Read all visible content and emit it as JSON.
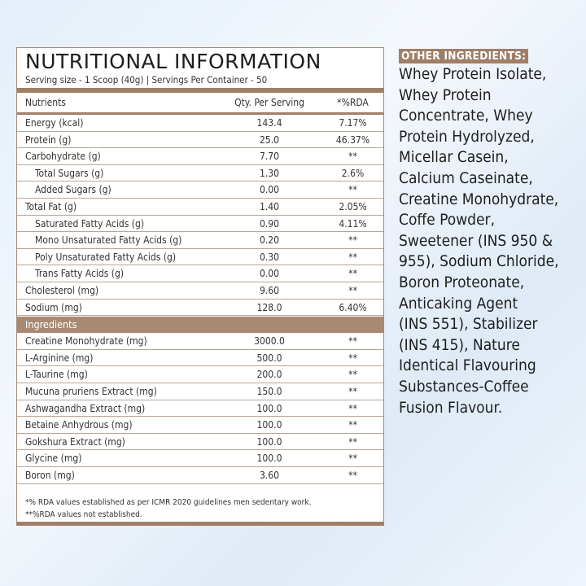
{
  "title": "NUTRITIONAL INFORMATION",
  "serving": "Serving size - 1 Scoop (40g) | Servings Per Container - 50",
  "columns": {
    "nutrient": "Nutrients",
    "qty": "Qty. Per Serving",
    "rda": "*%RDA"
  },
  "nutrients": [
    {
      "name": "Energy (kcal)",
      "qty": "143.4",
      "rda": "7.17%",
      "indent": false
    },
    {
      "name": "Protein (g)",
      "qty": "25.0",
      "rda": "46.37%",
      "indent": false
    },
    {
      "name": "Carbohydrate (g)",
      "qty": "7.70",
      "rda": "**",
      "indent": false
    },
    {
      "name": "Total Sugars (g)",
      "qty": "1.30",
      "rda": "2.6%",
      "indent": true
    },
    {
      "name": "Added Sugars (g)",
      "qty": "0.00",
      "rda": "**",
      "indent": true
    },
    {
      "name": "Total Fat (g)",
      "qty": "1.40",
      "rda": "2.05%",
      "indent": false
    },
    {
      "name": "Saturated Fatty Acids (g)",
      "qty": "0.90",
      "rda": "4.11%",
      "indent": true
    },
    {
      "name": "Mono Unsaturated Fatty Acids (g)",
      "qty": "0.20",
      "rda": "**",
      "indent": true
    },
    {
      "name": "Poly Unsaturated Fatty Acids (g)",
      "qty": "0.30",
      "rda": "**",
      "indent": true
    },
    {
      "name": "Trans Fatty Acids (g)",
      "qty": "0.00",
      "rda": "**",
      "indent": true
    },
    {
      "name": "Cholesterol (mg)",
      "qty": "9.60",
      "rda": "**",
      "indent": false
    },
    {
      "name": "Sodium (mg)",
      "qty": "128.0",
      "rda": "6.40%",
      "indent": false
    }
  ],
  "ingredients_label": "Ingredients",
  "ingredients": [
    {
      "name": "Creatine Monohydrate (mg)",
      "qty": "3000.0",
      "rda": "**"
    },
    {
      "name": "L-Arginine (mg)",
      "qty": "500.0",
      "rda": "**"
    },
    {
      "name": "L-Taurine (mg)",
      "qty": "200.0",
      "rda": "**"
    },
    {
      "name": "Mucuna pruriens Extract (mg)",
      "qty": "150.0",
      "rda": "**"
    },
    {
      "name": "Ashwagandha Extract (mg)",
      "qty": "100.0",
      "rda": "**"
    },
    {
      "name": "Betaine Anhydrous (mg)",
      "qty": "100.0",
      "rda": "**"
    },
    {
      "name": "Gokshura Extract (mg)",
      "qty": "100.0",
      "rda": "**"
    },
    {
      "name": "Glycine (mg)",
      "qty": "100.0",
      "rda": "**"
    },
    {
      "name": "Boron (mg)",
      "qty": "3.60",
      "rda": "**"
    }
  ],
  "footnotes": [
    "*% RDA values established as per ICMR 2020 guidelines men sedentary work.",
    "**%RDA values not established."
  ],
  "other_ingredients": {
    "heading": "OTHER INGREDIENTS:",
    "lines": [
      "Whey Protein Isolate,",
      "Whey Protein",
      "Concentrate, Whey",
      "Protein Hydrolyzed,",
      "Micellar Casein,",
      "Calcium Caseinate,",
      "Creatine Monohydrate,",
      "Coffe Powder,",
      "Sweetener (INS 950 &",
      "955), Sodium Chloride,",
      "Boron Proteonate,",
      "Anticaking Agent",
      "(INS 551), Stabilizer",
      "(INS 415), Nature",
      "Identical Flavouring",
      "Substances-Coffee",
      "Fusion Flavour."
    ]
  },
  "colors": {
    "accent_brown": "#a07f68"
  }
}
